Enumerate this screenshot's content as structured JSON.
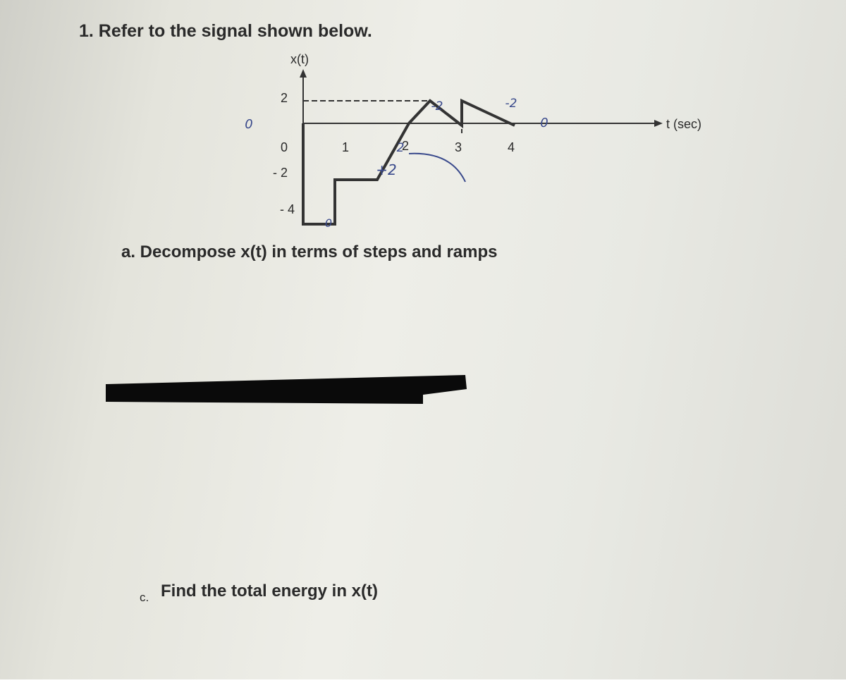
{
  "question": {
    "title": "1. Refer to the signal shown below.",
    "part_a": "a. Decompose x(t) in terms of steps and ramps",
    "part_c_letter": "c.",
    "part_c": "Find the total energy in x(t)"
  },
  "figure": {
    "y_label": "x(t)",
    "x_label": "t (sec)",
    "y_ticks": [
      "2",
      "0",
      "- 2",
      "- 4"
    ],
    "x_ticks": [
      "1",
      "2",
      "3",
      "4"
    ],
    "notes": [
      "0",
      "-2",
      "-2",
      "+2",
      "2",
      "0",
      "0"
    ]
  }
}
